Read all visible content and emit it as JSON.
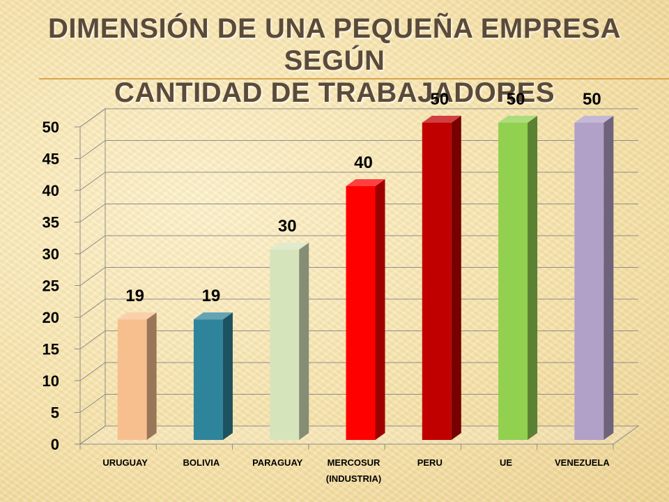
{
  "slide": {
    "title_line1": "DIMENSIÓN DE UNA PEQUEÑA EMPRESA SEGÚN",
    "title_line2": "CANTIDAD DE TRABAJADORES"
  },
  "chart_data": {
    "type": "bar",
    "style": "3d-column",
    "categories": [
      [
        "URUGUAY"
      ],
      [
        "BOLIVIA"
      ],
      [
        "PARAGUAY"
      ],
      [
        "MERCOSUR",
        "(INDUSTRIA)"
      ],
      [
        "PERU"
      ],
      [
        "UE"
      ],
      [
        "VENEZUELA"
      ]
    ],
    "values": [
      19,
      19,
      30,
      40,
      50,
      50,
      50
    ],
    "data_labels": [
      "19",
      "19",
      "30",
      "40",
      "50",
      "50",
      "50"
    ],
    "bar_colors": [
      "#f8bf8e",
      "#2e849b",
      "#d6e4bc",
      "#ff0000",
      "#c00000",
      "#92d050",
      "#b1a0c7"
    ],
    "ylim": [
      0,
      50
    ],
    "yticks": [
      0,
      5,
      10,
      15,
      20,
      25,
      30,
      35,
      40,
      45,
      50
    ],
    "grid": true,
    "legend": "none",
    "xlabel": "",
    "ylabel": ""
  }
}
